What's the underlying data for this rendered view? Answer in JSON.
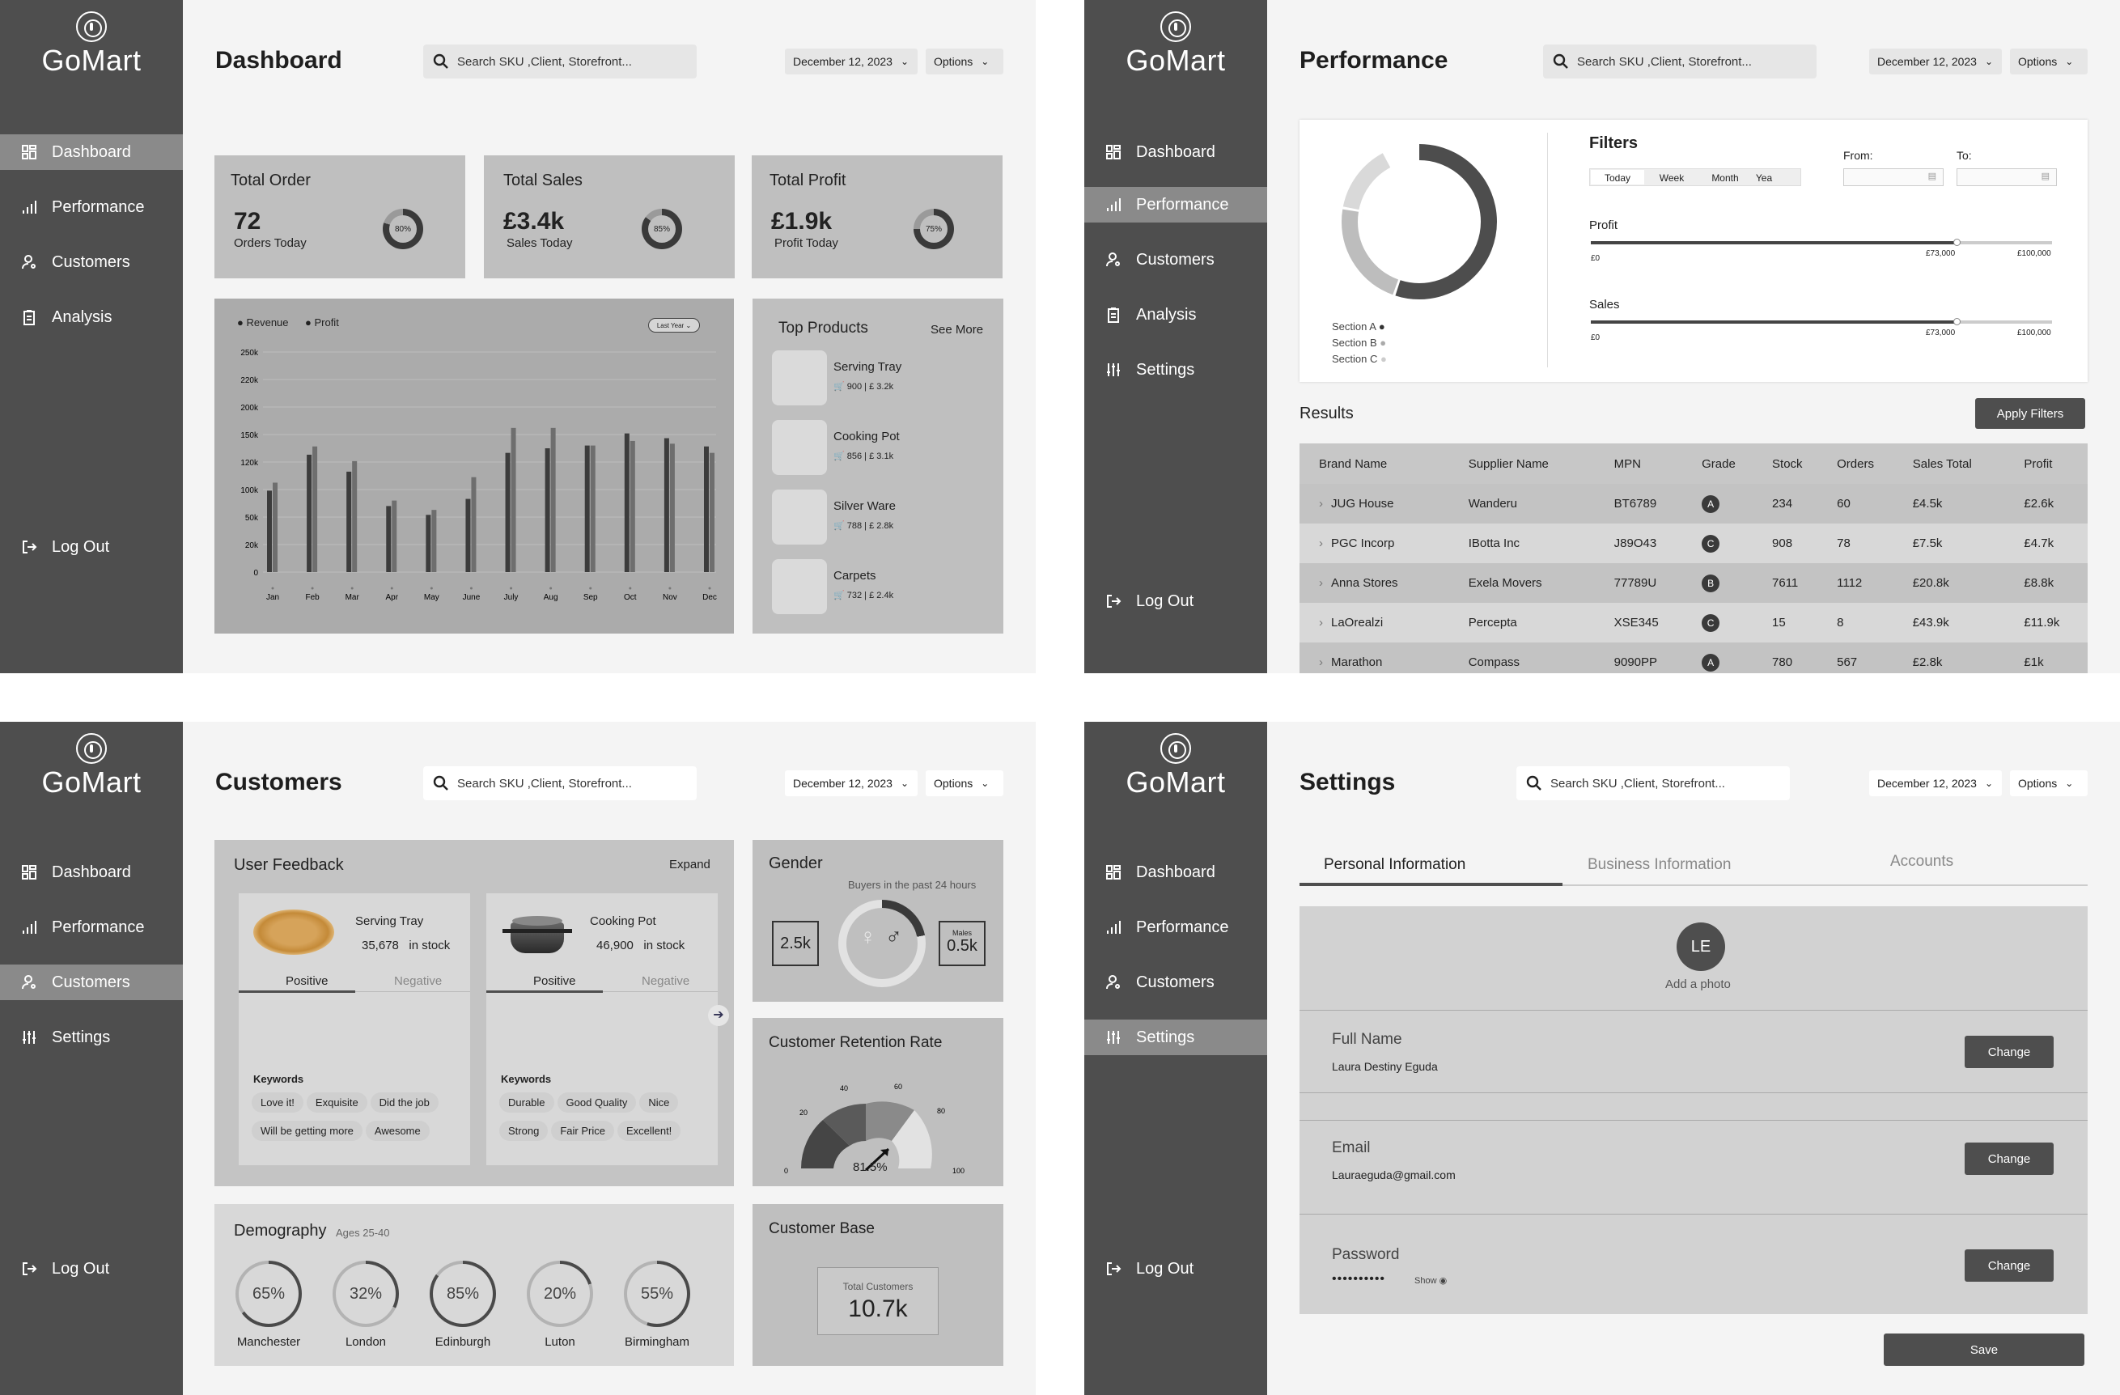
{
  "brand": "GoMart",
  "search_placeholder": "Search SKU ,Client, Storefront...",
  "date": "December 12, 2023",
  "options": "Options",
  "nav": {
    "dashboard": "Dashboard",
    "performance": "Performance",
    "customers": "Customers",
    "analysis": "Analysis",
    "settings": "Settings",
    "logout": "Log Out"
  },
  "dashboard": {
    "title": "Dashboard",
    "stats": [
      {
        "label": "Total Order",
        "value": "72",
        "sub": "Orders Today",
        "pct": "80%",
        "fraction": 0.8
      },
      {
        "label": "Total Sales",
        "value": "£3.4k",
        "sub": "Sales Today",
        "pct": "85%",
        "fraction": 0.85
      },
      {
        "label": "Total Profit",
        "value": "£1.9k",
        "sub": "Profit Today",
        "pct": "75%",
        "fraction": 0.75
      }
    ],
    "legend": {
      "revenue": "Revenue",
      "profit": "Profit",
      "period": "Last Year"
    },
    "top_products": {
      "title": "Top Products",
      "see_more": "See More",
      "items": [
        {
          "name": "Serving Tray",
          "qty": "900",
          "price": "£ 3.2k"
        },
        {
          "name": "Cooking Pot",
          "qty": "856",
          "price": "£ 3.1k"
        },
        {
          "name": "Silver Ware",
          "qty": "788",
          "price": "£ 2.8k"
        },
        {
          "name": "Carpets",
          "qty": "732",
          "price": "£ 2.4k"
        }
      ]
    }
  },
  "chart_data": {
    "type": "bar",
    "categories": [
      "Jan",
      "Feb",
      "Mar",
      "Apr",
      "May",
      "June",
      "July",
      "Aug",
      "Sep",
      "Oct",
      "Nov",
      "Dec"
    ],
    "series": [
      {
        "name": "Revenue",
        "values": [
          98,
          128,
          113,
          70,
          54,
          83,
          130,
          135,
          138,
          152,
          146,
          137
        ]
      },
      {
        "name": "Profit",
        "values": [
          105,
          137,
          121,
          80,
          63,
          109,
          162,
          162,
          138,
          143,
          140,
          130
        ]
      }
    ],
    "yticks": [
      "250k",
      "220k",
      "200k",
      "150k",
      "120k",
      "100k",
      "50k",
      "20k",
      "0"
    ],
    "ylim": [
      0,
      250
    ],
    "xlabel": "",
    "ylabel": "",
    "legend": "top-left"
  },
  "performance": {
    "title": "Performance",
    "donut_sections": [
      {
        "label": "Section A",
        "value": 0.55
      },
      {
        "label": "Section B",
        "value": 0.22
      },
      {
        "label": "Section C",
        "value": 0.14
      }
    ],
    "filters_title": "Filters",
    "periods": [
      "Today",
      "Week",
      "Month",
      "Yea"
    ],
    "from": "From:",
    "to": "To:",
    "profit_label": "Profit",
    "sales_label": "Sales",
    "range_min": "£0",
    "range_sel": "£73,000",
    "range_max": "£100,000",
    "results": "Results",
    "apply": "Apply Filters",
    "columns": [
      "Brand Name",
      "Supplier Name",
      "MPN",
      "Grade",
      "Stock",
      "Orders",
      "Sales Total",
      "Profit"
    ],
    "rows": [
      [
        "JUG House",
        "Wanderu",
        "BT6789",
        "A",
        "234",
        "60",
        "£4.5k",
        "£2.6k"
      ],
      [
        "PGC Incorp",
        "IBotta Inc",
        "J89O43",
        "C",
        "908",
        "78",
        "£7.5k",
        "£4.7k"
      ],
      [
        "Anna Stores",
        "Exela Movers",
        "77789U",
        "B",
        "7611",
        "1112",
        "£20.8k",
        "£8.8k"
      ],
      [
        "LaOrealzi",
        "Percepta",
        "XSE345",
        "C",
        "15",
        "8",
        "£43.9k",
        "£11.9k"
      ],
      [
        "Marathon",
        "Compass",
        "9090PP",
        "A",
        "780",
        "567",
        "£2.8k",
        "£1k"
      ]
    ]
  },
  "customers": {
    "title": "Customers",
    "feedback": {
      "title": "User Feedback",
      "expand": "Expand",
      "products": [
        {
          "name": "Serving Tray",
          "stock": "35,678",
          "stock_label": "in stock",
          "positive": "Positive",
          "negative": "Negative",
          "keywords_label": "Keywords",
          "keywords": [
            "Love it!",
            "Exquisite",
            "Did the job",
            "Will be getting more",
            "Awesome"
          ]
        },
        {
          "name": "Cooking Pot",
          "stock": "46,900",
          "stock_label": "in stock",
          "positive": "Positive",
          "negative": "Negative",
          "keywords_label": "Keywords",
          "keywords": [
            "Durable",
            "Good Quality",
            "Nice",
            "Strong",
            "Fair Price",
            "Excellent!"
          ]
        }
      ]
    },
    "gender": {
      "title": "Gender",
      "sub": "Buyers in the past 24 hours",
      "female": "2.5k",
      "male": "0.5k",
      "male_label": "Males"
    },
    "retention": {
      "title": "Customer Retention Rate",
      "value": "81.5%",
      "ticks": [
        "0",
        "20",
        "40",
        "60",
        "80",
        "100"
      ]
    },
    "demography": {
      "title": "Demography",
      "sub": "Ages 25-40",
      "items": [
        {
          "pct": "65%",
          "city": "Manchester"
        },
        {
          "pct": "32%",
          "city": "London"
        },
        {
          "pct": "85%",
          "city": "Edinburgh"
        },
        {
          "pct": "20%",
          "city": "Luton"
        },
        {
          "pct": "55%",
          "city": "Birmingham"
        }
      ]
    },
    "base": {
      "title": "Customer Base",
      "label": "Total Customers",
      "value": "10.7k"
    }
  },
  "settings": {
    "title": "Settings",
    "tabs": [
      "Personal Information",
      "Business Information",
      "Accounts"
    ],
    "initials": "LE",
    "add_photo": "Add a photo",
    "fields": [
      {
        "label": "Full Name",
        "value": "Laura Destiny Eguda"
      },
      {
        "label": "Email",
        "value": "Lauraeguda@gmail.com"
      },
      {
        "label": "Password",
        "value": "••••••••••"
      }
    ],
    "show": "Show",
    "change": "Change",
    "save": "Save"
  },
  "colors": {
    "sidebar": "#4e4e4e",
    "card": "#bfbfbf",
    "accent": "#3a3a3a",
    "active": "#8a8a8a"
  }
}
